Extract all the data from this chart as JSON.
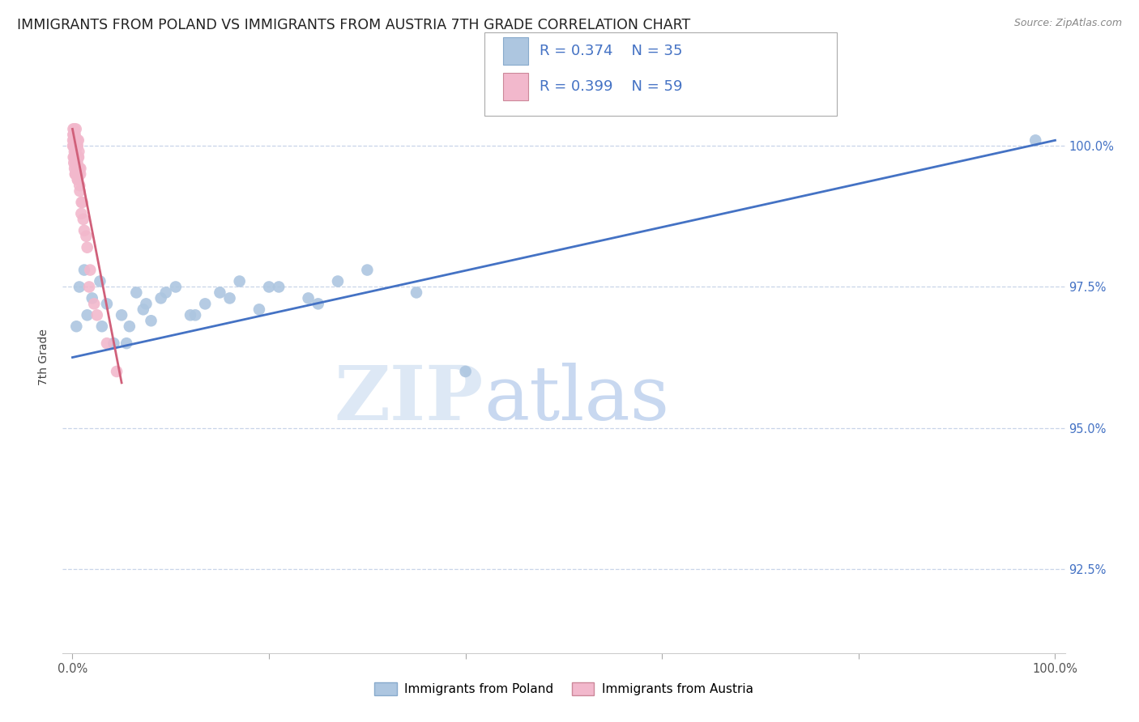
{
  "title": "IMMIGRANTS FROM POLAND VS IMMIGRANTS FROM AUSTRIA 7TH GRADE CORRELATION CHART",
  "source": "Source: ZipAtlas.com",
  "ylabel": "7th Grade",
  "legend_blue_r": "R = 0.374",
  "legend_blue_n": "N = 35",
  "legend_pink_r": "R = 0.399",
  "legend_pink_n": "N = 59",
  "legend_blue_label": "Immigrants from Poland",
  "legend_pink_label": "Immigrants from Austria",
  "blue_color": "#adc6e0",
  "pink_color": "#f2b8cc",
  "trendline_blue": "#4472c4",
  "trendline_pink": "#d0607a",
  "y_tick_positions": [
    92.5,
    95.0,
    97.5,
    100.0
  ],
  "y_tick_labels": [
    "92.5%",
    "95.0%",
    "97.5%",
    "100.0%"
  ],
  "ylim": [
    91.0,
    101.5
  ],
  "xlim": [
    -1.0,
    101.0
  ],
  "blue_x": [
    0.4,
    0.7,
    1.2,
    2.0,
    2.8,
    3.5,
    4.2,
    5.0,
    5.8,
    6.5,
    7.2,
    8.0,
    9.0,
    10.5,
    12.0,
    13.5,
    15.0,
    17.0,
    19.0,
    21.0,
    24.0,
    27.0,
    30.0,
    35.0,
    40.0,
    1.5,
    3.0,
    5.5,
    7.5,
    9.5,
    12.5,
    16.0,
    20.0,
    25.0,
    98.0
  ],
  "blue_y": [
    96.8,
    97.5,
    97.8,
    97.3,
    97.6,
    97.2,
    96.5,
    97.0,
    96.8,
    97.4,
    97.1,
    96.9,
    97.3,
    97.5,
    97.0,
    97.2,
    97.4,
    97.6,
    97.1,
    97.5,
    97.3,
    97.6,
    97.8,
    97.4,
    96.0,
    97.0,
    96.8,
    96.5,
    97.2,
    97.4,
    97.0,
    97.3,
    97.5,
    97.2,
    100.1
  ],
  "pink_x": [
    0.05,
    0.08,
    0.1,
    0.1,
    0.12,
    0.15,
    0.15,
    0.18,
    0.2,
    0.2,
    0.22,
    0.25,
    0.25,
    0.28,
    0.3,
    0.3,
    0.33,
    0.35,
    0.35,
    0.38,
    0.4,
    0.42,
    0.45,
    0.48,
    0.5,
    0.52,
    0.55,
    0.58,
    0.6,
    0.63,
    0.65,
    0.7,
    0.75,
    0.8,
    0.9,
    1.0,
    1.2,
    1.5,
    1.8,
    2.2,
    0.12,
    0.18,
    0.22,
    0.28,
    0.32,
    0.42,
    0.52,
    0.62,
    0.72,
    0.82,
    0.92,
    1.1,
    1.4,
    1.7,
    2.5,
    3.5,
    4.5,
    0.05,
    0.08
  ],
  "pink_y": [
    100.1,
    100.3,
    99.8,
    100.2,
    100.0,
    100.1,
    99.7,
    100.2,
    99.9,
    100.3,
    99.6,
    100.0,
    100.2,
    99.7,
    100.1,
    99.5,
    100.0,
    99.8,
    100.3,
    99.6,
    100.0,
    99.8,
    99.5,
    100.1,
    99.7,
    100.0,
    99.4,
    99.8,
    100.1,
    99.5,
    99.9,
    99.6,
    99.2,
    99.5,
    98.8,
    99.0,
    98.5,
    98.2,
    97.8,
    97.2,
    100.0,
    99.8,
    100.2,
    99.5,
    99.9,
    99.7,
    99.4,
    99.8,
    99.3,
    99.6,
    99.0,
    98.7,
    98.4,
    97.5,
    97.0,
    96.5,
    96.0,
    100.0,
    100.2
  ],
  "watermark_zip": "ZIP",
  "watermark_atlas": "atlas",
  "background_color": "#ffffff",
  "grid_color": "#c8d4e8",
  "title_fontsize": 12.5,
  "axis_label_fontsize": 10,
  "tick_fontsize": 10.5,
  "legend_fontsize": 13,
  "blue_trendline_x0": 0.0,
  "blue_trendline_y0": 96.25,
  "blue_trendline_x1": 100.0,
  "blue_trendline_y1": 100.1,
  "pink_trendline_x0": 0.0,
  "pink_trendline_y0": 100.3,
  "pink_trendline_x1": 5.0,
  "pink_trendline_y1": 95.8
}
